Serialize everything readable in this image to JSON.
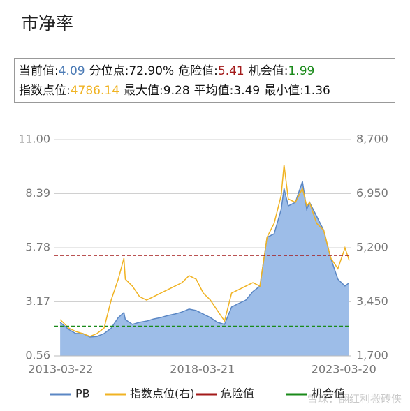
{
  "title": "市净率",
  "info": {
    "rows": [
      [
        {
          "label": "当前值:",
          "value": "4.09",
          "color": "#4a7ab5"
        },
        {
          "label": "分位点:",
          "value": "72.90%",
          "color": "#111111"
        },
        {
          "label": "危险值:",
          "value": "5.41",
          "color": "#a31a1a"
        },
        {
          "label": "机会值:",
          "value": "1.99",
          "color": "#1a8a1a"
        }
      ],
      [
        {
          "label": "指数点位:",
          "value": "4786.14",
          "color": "#f0b323"
        },
        {
          "label": "最大值:",
          "value": "9.28",
          "color": "#111111"
        },
        {
          "label": "平均值:",
          "value": "3.49",
          "color": "#111111"
        },
        {
          "label": "最小值:",
          "value": "1.36",
          "color": "#111111"
        }
      ]
    ]
  },
  "chart_data": {
    "type": "area-line",
    "x": [
      2013.2,
      2013.5,
      2013.75,
      2014.0,
      2014.25,
      2014.5,
      2014.75,
      2015.0,
      2015.25,
      2015.45,
      2015.5,
      2015.75,
      2016.0,
      2016.25,
      2016.5,
      2016.75,
      2017.0,
      2017.25,
      2017.5,
      2017.75,
      2018.0,
      2018.25,
      2018.5,
      2018.75,
      2019.0,
      2019.25,
      2019.5,
      2019.75,
      2020.0,
      2020.25,
      2020.5,
      2020.75,
      2021.0,
      2021.1,
      2021.25,
      2021.5,
      2021.75,
      2021.9,
      2022.0,
      2022.25,
      2022.5,
      2022.75,
      2023.0,
      2023.25,
      2023.4
    ],
    "series": [
      {
        "name": "PB",
        "color": "#5b87c4",
        "fill": "#9dbde8",
        "values": [
          2.18,
          1.84,
          1.64,
          1.64,
          1.47,
          1.5,
          1.64,
          1.9,
          2.41,
          2.65,
          2.31,
          2.08,
          2.18,
          2.24,
          2.34,
          2.41,
          2.51,
          2.58,
          2.68,
          2.82,
          2.75,
          2.58,
          2.41,
          2.18,
          2.08,
          2.92,
          3.09,
          3.25,
          3.66,
          3.93,
          6.28,
          6.45,
          7.63,
          8.64,
          7.8,
          7.97,
          8.98,
          7.63,
          7.97,
          7.3,
          6.62,
          5.27,
          4.26,
          3.93,
          4.09
        ]
      },
      {
        "name": "指数点位(右)",
        "color": "#f0b323",
        "axis": "y2",
        "values": [
          2874,
          2603,
          2490,
          2422,
          2332,
          2422,
          2603,
          3506,
          4183,
          4860,
          4183,
          3957,
          3619,
          3506,
          3619,
          3732,
          3844,
          3957,
          4070,
          4296,
          4183,
          3732,
          3506,
          3167,
          2829,
          3732,
          3844,
          3957,
          4070,
          3957,
          5537,
          5989,
          6892,
          7885,
          6779,
          6666,
          7117,
          6553,
          6666,
          5989,
          5763,
          4860,
          4522,
          5199,
          4786.14
        ]
      }
    ],
    "reference_lines": [
      {
        "name": "危险值",
        "value": 5.41,
        "color": "#a31a1a"
      },
      {
        "name": "机会值",
        "value": 1.99,
        "color": "#1a8a1a"
      }
    ],
    "xlim": [
      2013.0,
      2023.45
    ],
    "xticks": [
      {
        "value": 2013.22,
        "label": "2013-03-22"
      },
      {
        "value": 2018.22,
        "label": "2018-03-21"
      },
      {
        "value": 2023.21,
        "label": "2023-03-20"
      }
    ],
    "ylim": [
      0.56,
      11.0
    ],
    "yticks": [
      0.56,
      3.17,
      5.78,
      8.39,
      {
        "value": 11.0,
        "label": "11.00"
      }
    ],
    "y2lim": [
      1700,
      8700
    ],
    "y2ticks": [
      {
        "value": 1700,
        "label": "1,700"
      },
      {
        "value": 3450,
        "label": "3,450"
      },
      {
        "value": 5200,
        "label": "5,200"
      },
      {
        "value": 6950,
        "label": "6,950"
      },
      {
        "value": 8700,
        "label": "8,700"
      }
    ],
    "grid": true,
    "watermark": "雪球：翻红利搬砖侠"
  }
}
